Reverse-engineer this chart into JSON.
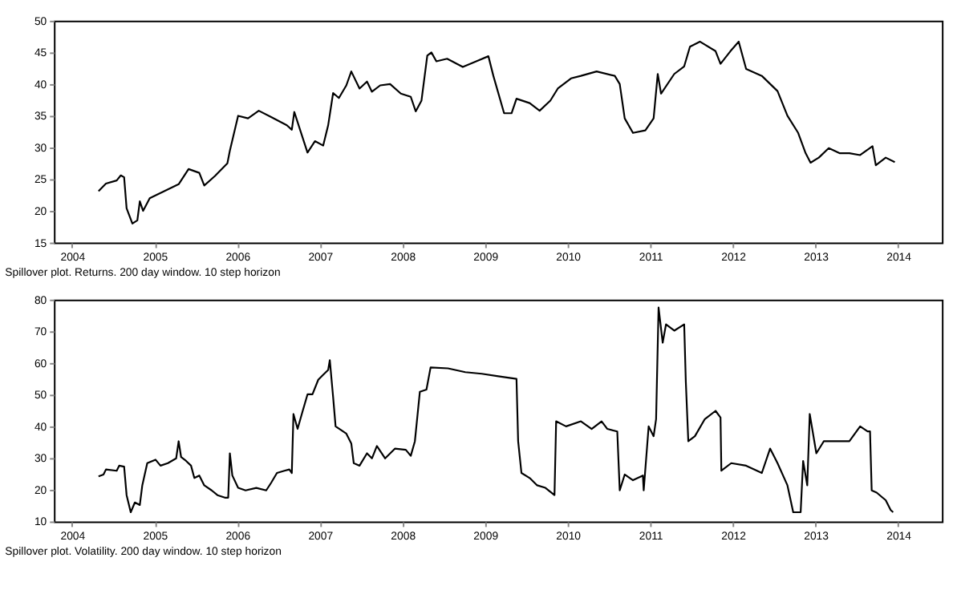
{
  "chart_data": [
    {
      "type": "line",
      "xlim": [
        2003.78,
        2014.53
      ],
      "xticks": [
        2004,
        2005,
        2006,
        2007,
        2008,
        2009,
        2010,
        2011,
        2012,
        2013,
        2014
      ],
      "ylim": [
        15,
        50
      ],
      "yticks": [
        15,
        20,
        25,
        30,
        35,
        40,
        45,
        50
      ],
      "grid": false,
      "annotations": [
        "Spillover plot. Returns. 200 day window. 10 step horizon"
      ],
      "series": [
        {
          "color": "#000000",
          "x": [
            2004.32,
            2004.41,
            2004.54,
            2004.59,
            2004.63,
            2004.66,
            2004.73,
            2004.79,
            2004.82,
            2004.86,
            2004.94,
            2005.1,
            2005.29,
            2005.41,
            2005.54,
            2005.6,
            2005.73,
            2005.88,
            2005.91,
            2006.01,
            2006.13,
            2006.26,
            2006.41,
            2006.6,
            2006.66,
            2006.69,
            2006.76,
            2006.85,
            2006.94,
            2007.04,
            2007.1,
            2007.16,
            2007.23,
            2007.32,
            2007.38,
            2007.48,
            2007.57,
            2007.63,
            2007.73,
            2007.85,
            2007.98,
            2008.1,
            2008.16,
            2008.23,
            2008.3,
            2008.35,
            2008.41,
            2008.54,
            2008.73,
            2008.91,
            2009.04,
            2009.1,
            2009.23,
            2009.32,
            2009.38,
            2009.54,
            2009.66,
            2009.79,
            2009.88,
            2010.04,
            2010.16,
            2010.35,
            2010.57,
            2010.63,
            2010.69,
            2010.79,
            2010.94,
            2011.04,
            2011.09,
            2011.13,
            2011.29,
            2011.41,
            2011.48,
            2011.6,
            2011.79,
            2011.85,
            2011.97,
            2012.07,
            2012.16,
            2012.35,
            2012.54,
            2012.66,
            2012.79,
            2012.88,
            2012.94,
            2013.04,
            2013.16,
            2013.29,
            2013.41,
            2013.54,
            2013.69,
            2013.73,
            2013.85,
            2013.96
          ],
          "values": [
            23.1,
            24.3,
            24.8,
            25.6,
            25.3,
            20.4,
            18,
            18.5,
            21.5,
            20,
            22,
            23,
            24.2,
            26.6,
            26,
            24,
            25.5,
            27.5,
            29.5,
            35,
            34.6,
            35.8,
            34.8,
            33.5,
            32.8,
            35.6,
            32.8,
            29.2,
            31,
            30.3,
            33.5,
            38.6,
            37.8,
            39.8,
            42,
            39.3,
            40.4,
            38.8,
            39.8,
            40,
            38.5,
            38,
            35.7,
            37.4,
            44.5,
            45,
            43.6,
            44,
            42.7,
            43.7,
            44.4,
            41.3,
            35.4,
            35.4,
            37.7,
            37,
            35.8,
            37.4,
            39.3,
            40.9,
            41.3,
            42,
            41.3,
            40,
            34.6,
            32.3,
            32.7,
            34.6,
            41.6,
            38.5,
            41.6,
            42.8,
            45.9,
            46.7,
            45.2,
            43.2,
            45.2,
            46.7,
            42.4,
            41.3,
            38.9,
            35,
            32.3,
            29.1,
            27.6,
            28.4,
            29.9,
            29.1,
            29.1,
            28.8,
            30.2,
            27.2,
            28.4,
            27.7
          ]
        }
      ]
    },
    {
      "type": "line",
      "xlim": [
        2003.78,
        2014.53
      ],
      "xticks": [
        2004,
        2005,
        2006,
        2007,
        2008,
        2009,
        2010,
        2011,
        2012,
        2013,
        2014
      ],
      "ylim": [
        10,
        80
      ],
      "yticks": [
        10,
        20,
        30,
        40,
        50,
        60,
        70,
        80
      ],
      "grid": false,
      "annotations": [
        "Spillover plot. Volatility. 200 day window. 10 step horizon"
      ],
      "series": [
        {
          "color": "#000000",
          "x": [
            2004.32,
            2004.38,
            2004.41,
            2004.54,
            2004.57,
            2004.63,
            2004.66,
            2004.71,
            2004.76,
            2004.82,
            2004.85,
            2004.91,
            2005.01,
            2005.07,
            2005.16,
            2005.26,
            2005.29,
            2005.32,
            2005.38,
            2005.44,
            2005.48,
            2005.54,
            2005.6,
            2005.69,
            2005.76,
            2005.85,
            2005.89,
            2005.91,
            2005.94,
            2006.01,
            2006.1,
            2006.23,
            2006.35,
            2006.41,
            2006.48,
            2006.57,
            2006.63,
            2006.66,
            2006.68,
            2006.73,
            2006.79,
            2006.85,
            2006.91,
            2006.98,
            2007.04,
            2007.1,
            2007.12,
            2007.16,
            2007.19,
            2007.32,
            2007.38,
            2007.41,
            2007.48,
            2007.57,
            2007.63,
            2007.69,
            2007.79,
            2007.91,
            2008.04,
            2008.1,
            2008.15,
            2008.21,
            2008.29,
            2008.34,
            2008.55,
            2008.76,
            2008.96,
            2009.16,
            2009.38,
            2009.4,
            2009.44,
            2009.54,
            2009.63,
            2009.73,
            2009.84,
            2009.86,
            2009.98,
            2010.16,
            2010.29,
            2010.41,
            2010.48,
            2010.6,
            2010.63,
            2010.69,
            2010.79,
            2010.91,
            2010.92,
            2010.98,
            2011.04,
            2011.07,
            2011.1,
            2011.15,
            2011.19,
            2011.29,
            2011.41,
            2011.43,
            2011.46,
            2011.54,
            2011.66,
            2011.79,
            2011.85,
            2011.86,
            2011.98,
            2012.16,
            2012.35,
            2012.45,
            2012.54,
            2012.66,
            2012.73,
            2012.82,
            2012.85,
            2012.9,
            2012.93,
            2013.01,
            2013.1,
            2013.29,
            2013.41,
            2013.54,
            2013.63,
            2013.66,
            2013.68,
            2013.74,
            2013.85,
            2013.91,
            2013.94
          ],
          "values": [
            24.2,
            24.8,
            26.4,
            26,
            27.6,
            27.3,
            18.3,
            12.9,
            16,
            15.2,
            21.4,
            28.4,
            29.5,
            27.6,
            28.4,
            29.9,
            35.3,
            30.3,
            29.1,
            27.6,
            23.7,
            24.5,
            21.4,
            19.8,
            18.3,
            17.5,
            17.5,
            31.5,
            24.5,
            20.6,
            19.8,
            20.6,
            19.8,
            22.2,
            25.3,
            26,
            26.4,
            25.3,
            43.9,
            39.2,
            44.7,
            50.1,
            50.1,
            54.7,
            56.3,
            57.8,
            60.9,
            49.3,
            40,
            37.7,
            34.6,
            28.4,
            27.6,
            31.5,
            29.9,
            33.8,
            29.9,
            33,
            32.6,
            30.7,
            35.3,
            50.9,
            51.6,
            58.6,
            58.3,
            57.1,
            56.6,
            55.8,
            55,
            35.3,
            25.3,
            23.7,
            21.4,
            20.6,
            18.3,
            41.6,
            40,
            41.6,
            39.2,
            41.6,
            39.2,
            38.4,
            19.8,
            24.8,
            23,
            24.5,
            19.8,
            40,
            36.9,
            42.3,
            77.5,
            66.4,
            72.2,
            70.2,
            72.2,
            54,
            35.3,
            36.9,
            42.3,
            44.9,
            42.8,
            26,
            28.4,
            27.6,
            25.3,
            33,
            28.4,
            21.4,
            12.9,
            12.9,
            29.1,
            21.4,
            43.9,
            31.5,
            35.3,
            35.3,
            35.3,
            40,
            38.4,
            38.4,
            19.8,
            19.1,
            16.7,
            13.6,
            12.9
          ]
        }
      ]
    }
  ]
}
